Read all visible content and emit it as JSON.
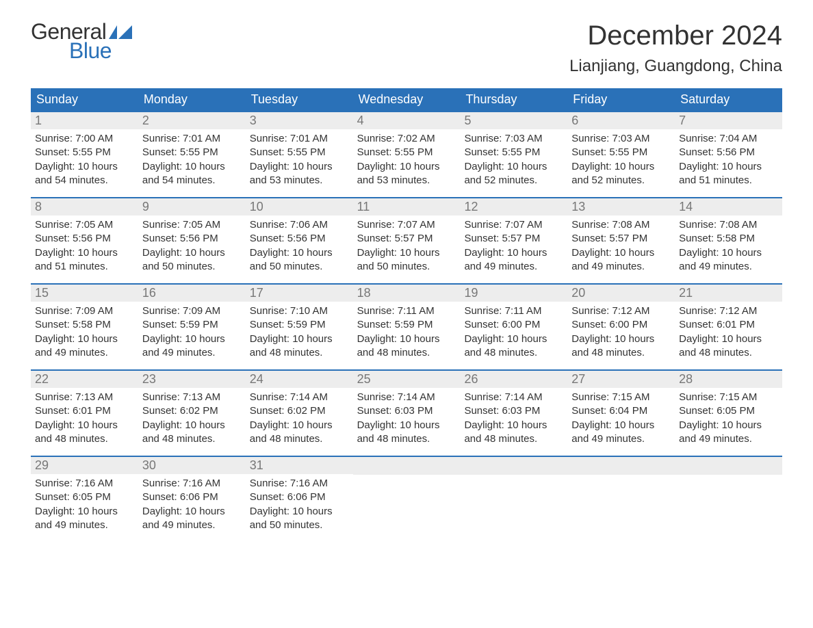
{
  "logo": {
    "text1": "General",
    "text2": "Blue",
    "flag_color": "#2a71b8"
  },
  "title": "December 2024",
  "location": "Lianjiang, Guangdong, China",
  "colors": {
    "header_bg": "#2a71b8",
    "header_text": "#ffffff",
    "daynum_bg": "#ededed",
    "daynum_text": "#777777",
    "body_text": "#333333",
    "week_border": "#2a71b8"
  },
  "layout": {
    "columns": 7,
    "rows": 5
  },
  "day_headers": [
    "Sunday",
    "Monday",
    "Tuesday",
    "Wednesday",
    "Thursday",
    "Friday",
    "Saturday"
  ],
  "days": [
    {
      "n": "1",
      "sunrise": "Sunrise: 7:00 AM",
      "sunset": "Sunset: 5:55 PM",
      "d1": "Daylight: 10 hours",
      "d2": "and 54 minutes."
    },
    {
      "n": "2",
      "sunrise": "Sunrise: 7:01 AM",
      "sunset": "Sunset: 5:55 PM",
      "d1": "Daylight: 10 hours",
      "d2": "and 54 minutes."
    },
    {
      "n": "3",
      "sunrise": "Sunrise: 7:01 AM",
      "sunset": "Sunset: 5:55 PM",
      "d1": "Daylight: 10 hours",
      "d2": "and 53 minutes."
    },
    {
      "n": "4",
      "sunrise": "Sunrise: 7:02 AM",
      "sunset": "Sunset: 5:55 PM",
      "d1": "Daylight: 10 hours",
      "d2": "and 53 minutes."
    },
    {
      "n": "5",
      "sunrise": "Sunrise: 7:03 AM",
      "sunset": "Sunset: 5:55 PM",
      "d1": "Daylight: 10 hours",
      "d2": "and 52 minutes."
    },
    {
      "n": "6",
      "sunrise": "Sunrise: 7:03 AM",
      "sunset": "Sunset: 5:55 PM",
      "d1": "Daylight: 10 hours",
      "d2": "and 52 minutes."
    },
    {
      "n": "7",
      "sunrise": "Sunrise: 7:04 AM",
      "sunset": "Sunset: 5:56 PM",
      "d1": "Daylight: 10 hours",
      "d2": "and 51 minutes."
    },
    {
      "n": "8",
      "sunrise": "Sunrise: 7:05 AM",
      "sunset": "Sunset: 5:56 PM",
      "d1": "Daylight: 10 hours",
      "d2": "and 51 minutes."
    },
    {
      "n": "9",
      "sunrise": "Sunrise: 7:05 AM",
      "sunset": "Sunset: 5:56 PM",
      "d1": "Daylight: 10 hours",
      "d2": "and 50 minutes."
    },
    {
      "n": "10",
      "sunrise": "Sunrise: 7:06 AM",
      "sunset": "Sunset: 5:56 PM",
      "d1": "Daylight: 10 hours",
      "d2": "and 50 minutes."
    },
    {
      "n": "11",
      "sunrise": "Sunrise: 7:07 AM",
      "sunset": "Sunset: 5:57 PM",
      "d1": "Daylight: 10 hours",
      "d2": "and 50 minutes."
    },
    {
      "n": "12",
      "sunrise": "Sunrise: 7:07 AM",
      "sunset": "Sunset: 5:57 PM",
      "d1": "Daylight: 10 hours",
      "d2": "and 49 minutes."
    },
    {
      "n": "13",
      "sunrise": "Sunrise: 7:08 AM",
      "sunset": "Sunset: 5:57 PM",
      "d1": "Daylight: 10 hours",
      "d2": "and 49 minutes."
    },
    {
      "n": "14",
      "sunrise": "Sunrise: 7:08 AM",
      "sunset": "Sunset: 5:58 PM",
      "d1": "Daylight: 10 hours",
      "d2": "and 49 minutes."
    },
    {
      "n": "15",
      "sunrise": "Sunrise: 7:09 AM",
      "sunset": "Sunset: 5:58 PM",
      "d1": "Daylight: 10 hours",
      "d2": "and 49 minutes."
    },
    {
      "n": "16",
      "sunrise": "Sunrise: 7:09 AM",
      "sunset": "Sunset: 5:59 PM",
      "d1": "Daylight: 10 hours",
      "d2": "and 49 minutes."
    },
    {
      "n": "17",
      "sunrise": "Sunrise: 7:10 AM",
      "sunset": "Sunset: 5:59 PM",
      "d1": "Daylight: 10 hours",
      "d2": "and 48 minutes."
    },
    {
      "n": "18",
      "sunrise": "Sunrise: 7:11 AM",
      "sunset": "Sunset: 5:59 PM",
      "d1": "Daylight: 10 hours",
      "d2": "and 48 minutes."
    },
    {
      "n": "19",
      "sunrise": "Sunrise: 7:11 AM",
      "sunset": "Sunset: 6:00 PM",
      "d1": "Daylight: 10 hours",
      "d2": "and 48 minutes."
    },
    {
      "n": "20",
      "sunrise": "Sunrise: 7:12 AM",
      "sunset": "Sunset: 6:00 PM",
      "d1": "Daylight: 10 hours",
      "d2": "and 48 minutes."
    },
    {
      "n": "21",
      "sunrise": "Sunrise: 7:12 AM",
      "sunset": "Sunset: 6:01 PM",
      "d1": "Daylight: 10 hours",
      "d2": "and 48 minutes."
    },
    {
      "n": "22",
      "sunrise": "Sunrise: 7:13 AM",
      "sunset": "Sunset: 6:01 PM",
      "d1": "Daylight: 10 hours",
      "d2": "and 48 minutes."
    },
    {
      "n": "23",
      "sunrise": "Sunrise: 7:13 AM",
      "sunset": "Sunset: 6:02 PM",
      "d1": "Daylight: 10 hours",
      "d2": "and 48 minutes."
    },
    {
      "n": "24",
      "sunrise": "Sunrise: 7:14 AM",
      "sunset": "Sunset: 6:02 PM",
      "d1": "Daylight: 10 hours",
      "d2": "and 48 minutes."
    },
    {
      "n": "25",
      "sunrise": "Sunrise: 7:14 AM",
      "sunset": "Sunset: 6:03 PM",
      "d1": "Daylight: 10 hours",
      "d2": "and 48 minutes."
    },
    {
      "n": "26",
      "sunrise": "Sunrise: 7:14 AM",
      "sunset": "Sunset: 6:03 PM",
      "d1": "Daylight: 10 hours",
      "d2": "and 48 minutes."
    },
    {
      "n": "27",
      "sunrise": "Sunrise: 7:15 AM",
      "sunset": "Sunset: 6:04 PM",
      "d1": "Daylight: 10 hours",
      "d2": "and 49 minutes."
    },
    {
      "n": "28",
      "sunrise": "Sunrise: 7:15 AM",
      "sunset": "Sunset: 6:05 PM",
      "d1": "Daylight: 10 hours",
      "d2": "and 49 minutes."
    },
    {
      "n": "29",
      "sunrise": "Sunrise: 7:16 AM",
      "sunset": "Sunset: 6:05 PM",
      "d1": "Daylight: 10 hours",
      "d2": "and 49 minutes."
    },
    {
      "n": "30",
      "sunrise": "Sunrise: 7:16 AM",
      "sunset": "Sunset: 6:06 PM",
      "d1": "Daylight: 10 hours",
      "d2": "and 49 minutes."
    },
    {
      "n": "31",
      "sunrise": "Sunrise: 7:16 AM",
      "sunset": "Sunset: 6:06 PM",
      "d1": "Daylight: 10 hours",
      "d2": "and 50 minutes."
    }
  ],
  "trailing_empty": 4
}
